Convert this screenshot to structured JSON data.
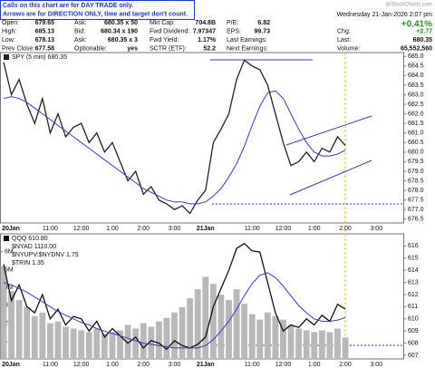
{
  "header": {
    "notice": [
      "Calls on this chart are for DAY TRADE only.",
      "Arrows are for DIRECTION ONLY, time and target don't count."
    ],
    "brand": "@StockCharts.com",
    "date": "Wednesday 21-Jan-2026 2:07 pm",
    "change_pct": "+0.41%",
    "rows": [
      [
        {
          "label": "Open:",
          "value": "679.65"
        },
        {
          "label": "Ask:",
          "value": "680.35 x 50"
        },
        {
          "label": "Mkt Cap:",
          "value": "704.8B"
        },
        {
          "label": "P/E:",
          "value": "6.82"
        }
      ],
      [
        {
          "label": "High:",
          "value": "685.13"
        },
        {
          "label": "Bid:",
          "value": "680.34 x 190"
        },
        {
          "label": "Fwd Dividend:",
          "value": "7.97347"
        },
        {
          "label": "EPS:",
          "value": "99.73"
        }
      ],
      [
        {
          "label": "Low:",
          "value": "678.13"
        },
        {
          "label": "Ask:",
          "value": "680.35 x 3"
        },
        {
          "label": "Fwd Yield:",
          "value": "1.17%"
        },
        {
          "label": "Last Earnings:"
        }
      ],
      [
        {
          "label": "Prev Close:",
          "value": "677.58"
        },
        {
          "label": "Optionable:",
          "value": "yes"
        },
        {
          "label": "SCTR (ETF):",
          "value": "52.2"
        },
        {
          "label": "Next Earnings:"
        }
      ]
    ],
    "right": [
      {
        "label": "Chg:",
        "value": "+2.77"
      },
      {
        "label": "Last:",
        "value": "680.35"
      },
      {
        "label": "Volume:",
        "value": "65,552,560"
      }
    ]
  },
  "chart_data": [
    {
      "type": "line",
      "categories": [
        "20Jan",
        null,
        null,
        null,
        null,
        null,
        "11:00",
        null,
        null,
        null,
        "12:00",
        null,
        null,
        null,
        "1:00",
        null,
        null,
        null,
        "2:00",
        null,
        null,
        null,
        "3:00",
        null,
        null,
        null,
        "21Jan",
        null,
        null,
        null,
        null,
        null,
        "11:00",
        null,
        null,
        null,
        "12:00",
        null,
        null,
        null,
        "1:00",
        null,
        null,
        null,
        "2:00",
        null,
        null,
        null,
        "3:00",
        null,
        null,
        null
      ],
      "series": [
        {
          "name": "SPY (5 min) 680.35",
          "color": "#222222",
          "values": [
            684.7,
            683.0,
            683.8,
            682.5,
            681.5,
            682.8,
            681.0,
            682.0,
            680.8,
            681.3,
            681.5,
            680.5,
            681.0,
            680.0,
            680.5,
            679.5,
            678.5,
            679.0,
            677.8,
            678.2,
            677.5,
            677.3,
            677.0,
            677.2,
            676.8,
            677.5,
            678.0,
            680.5,
            681.2,
            682.0,
            683.8,
            684.8,
            684.5,
            684.3,
            683.5,
            682.0,
            680.5,
            679.3,
            679.5,
            680.0,
            679.5,
            680.2,
            680.0,
            680.8,
            680.35,
            null,
            null,
            null,
            null,
            null,
            null,
            null
          ]
        },
        {
          "color": "#3a3ac8",
          "values": [
            682.8,
            682.9,
            682.8,
            682.6,
            682.3,
            682.0,
            681.7,
            681.4,
            681.1,
            680.8,
            680.5,
            680.2,
            679.9,
            679.6,
            679.3,
            679.0,
            678.7,
            678.4,
            678.1,
            677.9,
            677.7,
            677.5,
            677.4,
            677.4,
            677.3,
            677.3,
            677.4,
            677.7,
            678.1,
            678.7,
            679.4,
            680.3,
            681.4,
            682.4,
            683.1,
            683.2,
            682.8,
            682.0,
            681.2,
            680.5,
            680.0,
            679.8,
            679.8,
            679.9,
            680.1,
            null,
            null,
            null,
            null,
            null,
            null,
            null
          ]
        }
      ],
      "ylim": [
        676.3,
        685.2
      ],
      "yticks": [
        {
          "value": 685,
          "label": "685.0"
        },
        {
          "value": 684.5,
          "label": "684.5"
        },
        {
          "value": 684,
          "label": "684.0"
        },
        {
          "value": 683.5,
          "label": "683.5"
        },
        {
          "value": 683,
          "label": "683.0"
        },
        {
          "value": 682.5,
          "label": "682.5"
        },
        {
          "value": 682,
          "label": "682.0"
        },
        {
          "value": 681.5,
          "label": "681.5"
        },
        {
          "value": 681,
          "label": "681.0"
        },
        {
          "value": 680.5,
          "label": "680.5"
        },
        {
          "value": 680,
          "label": "680.0"
        },
        {
          "value": 679.5,
          "label": "679.5"
        },
        {
          "value": 679,
          "label": "679.0"
        },
        {
          "value": 678.5,
          "label": "678.5"
        },
        {
          "value": 678,
          "label": "678.0"
        },
        {
          "value": 677.5,
          "label": "677.5"
        },
        {
          "value": 677,
          "label": "677.0"
        },
        {
          "value": 676.5,
          "label": "676.5"
        }
      ],
      "grid": false
    },
    {
      "type": "line",
      "categories": [
        "20Jan",
        null,
        null,
        null,
        null,
        null,
        "11:00",
        null,
        null,
        null,
        "12:00",
        null,
        null,
        null,
        "1:00",
        null,
        null,
        null,
        "2:00",
        null,
        null,
        null,
        "3:00",
        null,
        null,
        null,
        "21Jan",
        null,
        null,
        null,
        null,
        null,
        "11:00",
        null,
        null,
        null,
        "12:00",
        null,
        null,
        null,
        "1:00",
        null,
        null,
        null,
        "2:00",
        null,
        null,
        null,
        "3:00",
        null,
        null,
        null
      ],
      "series": [
        {
          "type": "bar",
          "axis": "y2",
          "color": "#b8b8b8",
          "values": [
            5200000,
            3800000,
            3300000,
            2900000,
            2400000,
            2600000,
            2000000,
            2100000,
            1800000,
            1700000,
            1600000,
            1500000,
            1700000,
            1400000,
            1500000,
            1600000,
            1900000,
            1700000,
            2000000,
            1800000,
            2100000,
            2300000,
            2600000,
            2900000,
            3400000,
            3900000,
            4600000,
            4200000,
            3600000,
            3300000,
            3900000,
            3100000,
            2500000,
            2200000,
            2600000,
            2400000,
            2200000,
            1900000,
            1700000,
            1600000,
            1500000,
            1600000,
            1500000,
            1700000,
            1200000,
            null,
            null,
            null,
            null,
            null,
            null,
            null
          ]
        },
        {
          "name": "QQQ 610.80",
          "color": "#111111",
          "values": [
            614.5,
            611.5,
            612.8,
            611.0,
            610.5,
            612.0,
            610.0,
            610.8,
            609.5,
            610.2,
            610.0,
            609.0,
            609.8,
            608.5,
            609.2,
            608.6,
            608.0,
            608.5,
            607.6,
            608.2,
            608.0,
            607.5,
            608.2,
            607.8,
            607.6,
            607.9,
            608.5,
            611.0,
            612.5,
            614.0,
            615.8,
            616.2,
            615.6,
            615.5,
            613.0,
            610.5,
            609.0,
            609.5,
            609.3,
            610.0,
            609.5,
            610.3,
            609.8,
            611.2,
            610.8,
            null,
            null,
            null,
            null,
            null,
            null,
            null
          ]
        },
        {
          "color": "#3a3ac8",
          "values": [
            613.0,
            612.8,
            612.5,
            612.2,
            611.8,
            611.4,
            611.0,
            610.6,
            610.3,
            610.0,
            609.7,
            609.5,
            609.2,
            609.0,
            608.8,
            608.6,
            608.4,
            608.2,
            608.0,
            607.9,
            607.8,
            607.7,
            607.6,
            607.6,
            607.6,
            607.6,
            607.8,
            608.3,
            609.0,
            609.8,
            610.8,
            611.9,
            612.9,
            613.6,
            613.8,
            613.4,
            612.7,
            611.9,
            611.1,
            610.5,
            610.0,
            609.8,
            609.8,
            609.9,
            610.1,
            null,
            null,
            null,
            null,
            null,
            null,
            null
          ]
        }
      ],
      "legend_extra": [
        "$NYAD 1110.00",
        "$NYUPV:$NYDNV 1.75",
        "$TRIN 1.35"
      ],
      "ylim": [
        606.7,
        617
      ],
      "yticks": [
        616,
        615,
        614,
        613,
        612,
        611,
        610,
        609,
        608,
        607
      ],
      "y2lim": [
        0,
        7000000
      ],
      "y2ticks": [
        {
          "value": 1000000,
          "label": "1M"
        },
        {
          "value": 2000000,
          "label": "2M"
        },
        {
          "value": 3000000,
          "label": "3M"
        },
        {
          "value": 4000000,
          "label": "4M"
        },
        {
          "value": 5000000,
          "label": "5M"
        },
        {
          "value": 6000000,
          "label": "6M"
        }
      ],
      "grid": false
    }
  ]
}
